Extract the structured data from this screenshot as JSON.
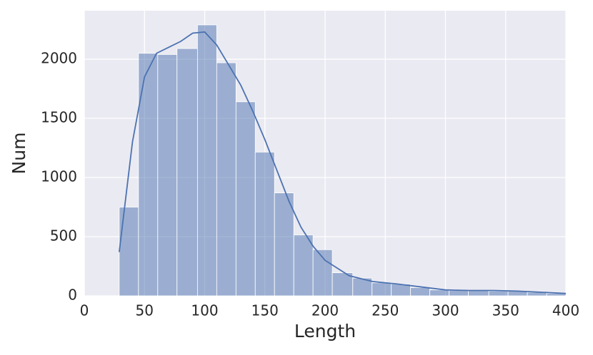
{
  "chart_data": {
    "type": "histogram",
    "xlabel": "Length",
    "ylabel": "Num",
    "bins": [
      29,
      45,
      61,
      77,
      94,
      110,
      126,
      142,
      158,
      174,
      190,
      206,
      223,
      239,
      255,
      271,
      287,
      303,
      319,
      336,
      352,
      368,
      384,
      400
    ],
    "values": [
      750,
      2050,
      2040,
      2090,
      2290,
      1970,
      1640,
      1215,
      870,
      515,
      390,
      195,
      150,
      110,
      100,
      70,
      50,
      45,
      45,
      40,
      40,
      30,
      20
    ],
    "color": "#4c72b0",
    "kde": {
      "x": [
        29,
        40,
        50,
        60,
        70,
        80,
        90,
        100,
        110,
        120,
        130,
        140,
        150,
        160,
        170,
        180,
        190,
        200,
        220,
        240,
        260,
        280,
        300,
        320,
        340,
        360,
        380,
        400
      ],
      "y": [
        370,
        1300,
        1850,
        2050,
        2100,
        2150,
        2220,
        2230,
        2120,
        1950,
        1780,
        1560,
        1320,
        1060,
        800,
        580,
        420,
        300,
        170,
        120,
        100,
        75,
        50,
        45,
        45,
        40,
        30,
        20
      ]
    },
    "xlim": [
      0,
      400
    ],
    "xticks": [
      0,
      50,
      100,
      150,
      200,
      250,
      300,
      350,
      400
    ],
    "ylim": [
      0,
      2410
    ],
    "yticks": [
      0,
      500,
      1000,
      1500,
      2000
    ],
    "grid": true
  }
}
